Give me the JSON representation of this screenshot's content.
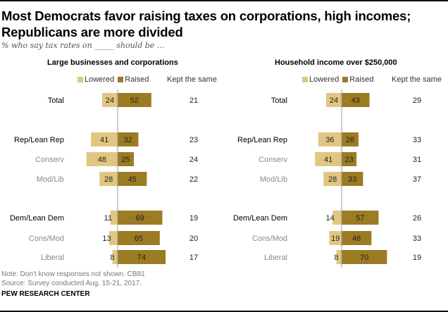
{
  "title": "Most Democrats favor raising taxes on corporations, high incomes; Republicans are more divided",
  "subtitle": "% who say tax rates on _____ should be ...",
  "colors": {
    "lowered": "#e0c680",
    "raised": "#9b7b23",
    "axis": "#999999",
    "sub_label": "#888888"
  },
  "legend": {
    "lowered": "Lowered",
    "raised": "Raised",
    "kept": "Kept the same"
  },
  "chart_data": [
    {
      "type": "bar",
      "title": "Large businesses and corporations",
      "categories": [
        "Total",
        "Rep/Lean Rep",
        "Conserv",
        "Mod/Lib",
        "Dem/Lean Dem",
        "Cons/Mod",
        "Liberal"
      ],
      "series": [
        {
          "name": "Lowered",
          "values": [
            24,
            41,
            48,
            28,
            11,
            13,
            8
          ]
        },
        {
          "name": "Raised",
          "values": [
            52,
            32,
            25,
            45,
            69,
            65,
            74
          ]
        },
        {
          "name": "Kept the same",
          "values": [
            21,
            23,
            24,
            22,
            19,
            20,
            17
          ]
        }
      ]
    },
    {
      "type": "bar",
      "title": "Household income over $250,000",
      "categories": [
        "Total",
        "Rep/Lean Rep",
        "Conserv",
        "Mod/Lib",
        "Dem/Lean Dem",
        "Cons/Mod",
        "Liberal"
      ],
      "series": [
        {
          "name": "Lowered",
          "values": [
            24,
            36,
            41,
            28,
            14,
            19,
            8
          ]
        },
        {
          "name": "Raised",
          "values": [
            43,
            26,
            23,
            33,
            57,
            46,
            70
          ]
        },
        {
          "name": "Kept the same",
          "values": [
            29,
            33,
            31,
            37,
            26,
            33,
            19
          ]
        }
      ]
    }
  ],
  "notes": {
    "note": "Note: Don't know responses not shown. CB81",
    "source": "Source: Survey conducted Aug. 15-21, 2017."
  },
  "org": "PEW RESEARCH CENTER"
}
